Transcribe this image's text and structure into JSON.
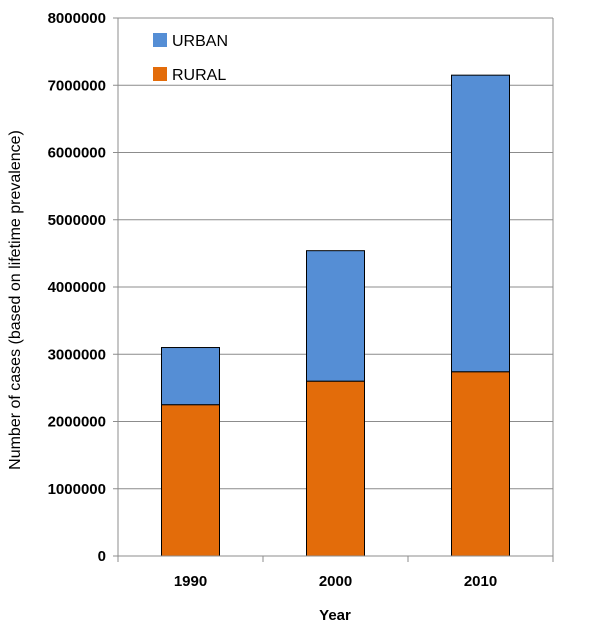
{
  "chart_data": {
    "type": "bar",
    "stacked": true,
    "categories": [
      "1990",
      "2000",
      "2010"
    ],
    "series": [
      {
        "name": "RURAL",
        "values": [
          2250000,
          2600000,
          2740000
        ],
        "color": "#e36c0a"
      },
      {
        "name": "URBAN",
        "values": [
          850000,
          1940000,
          4410000
        ],
        "color": "#558ed5"
      }
    ],
    "xlabel": "Year",
    "ylabel": "Number of cases (based on lifetime prevalence)",
    "ylim": [
      0,
      8000000
    ],
    "yticks": [
      "0",
      "1000000",
      "2000000",
      "3000000",
      "4000000",
      "5000000",
      "6000000",
      "7000000",
      "8000000"
    ],
    "grid": true,
    "legend": {
      "position": "top-left",
      "order": [
        "URBAN",
        "RURAL"
      ]
    }
  }
}
